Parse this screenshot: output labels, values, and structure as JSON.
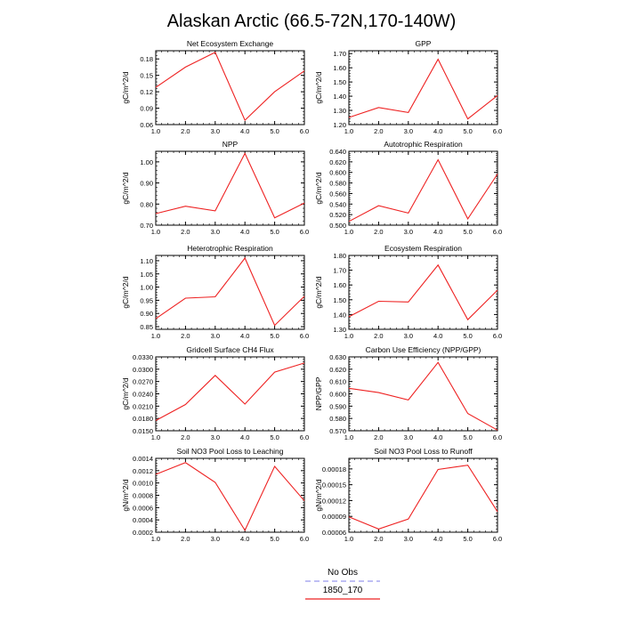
{
  "figure_title": "Alaskan Arctic (66.5-72N,170-140W)",
  "legend": {
    "entries": [
      {
        "label": "No Obs",
        "color": "#9999ee",
        "style": "dashed"
      },
      {
        "label": "1850_170",
        "color": "#ee2222",
        "style": "solid"
      }
    ]
  },
  "colors": {
    "series": "#ee2222"
  },
  "chart_data": [
    {
      "type": "line",
      "title": "Net Ecosystem Exchange",
      "xlabel": "",
      "ylabel": "gC/m^2/d",
      "x": [
        1,
        2,
        3,
        4,
        5,
        6
      ],
      "xlim": [
        1,
        6
      ],
      "xticks": [
        "1.0",
        "2.0",
        "3.0",
        "4.0",
        "5.0",
        "6.0"
      ],
      "ylim": [
        0.06,
        0.195
      ],
      "yticks": [
        "0.06",
        "0.09",
        "0.12",
        "0.15",
        "0.18"
      ],
      "ytick_values": [
        0.06,
        0.09,
        0.12,
        0.15,
        0.18
      ],
      "series": [
        {
          "values": [
            0.128,
            0.165,
            0.192,
            0.068,
            0.12,
            0.158
          ]
        }
      ]
    },
    {
      "type": "line",
      "title": "GPP",
      "xlabel": "",
      "ylabel": "gC/m^2/d",
      "x": [
        1,
        2,
        3,
        4,
        5,
        6
      ],
      "xlim": [
        1,
        6
      ],
      "xticks": [
        "1.0",
        "2.0",
        "3.0",
        "4.0",
        "5.0",
        "6.0"
      ],
      "ylim": [
        1.2,
        1.72
      ],
      "yticks": [
        "1.20",
        "1.30",
        "1.40",
        "1.50",
        "1.60",
        "1.70"
      ],
      "ytick_values": [
        1.2,
        1.3,
        1.4,
        1.5,
        1.6,
        1.7
      ],
      "series": [
        {
          "values": [
            1.25,
            1.32,
            1.285,
            1.66,
            1.24,
            1.405
          ]
        }
      ]
    },
    {
      "type": "line",
      "title": "NPP",
      "xlabel": "",
      "ylabel": "gC/m^2/d",
      "x": [
        1,
        2,
        3,
        4,
        5,
        6
      ],
      "xlim": [
        1,
        6
      ],
      "xticks": [
        "1.0",
        "2.0",
        "3.0",
        "4.0",
        "5.0",
        "6.0"
      ],
      "ylim": [
        0.7,
        1.05
      ],
      "yticks": [
        "0.70",
        "0.80",
        "0.90",
        "1.00"
      ],
      "ytick_values": [
        0.7,
        0.8,
        0.9,
        1.0
      ],
      "series": [
        {
          "values": [
            0.755,
            0.79,
            0.768,
            1.04,
            0.735,
            0.805
          ]
        }
      ]
    },
    {
      "type": "line",
      "title": "Autotrophic Respiration",
      "xlabel": "",
      "ylabel": "gC/m^2/d",
      "x": [
        1,
        2,
        3,
        4,
        5,
        6
      ],
      "xlim": [
        1,
        6
      ],
      "xticks": [
        "1.0",
        "2.0",
        "3.0",
        "4.0",
        "5.0",
        "6.0"
      ],
      "ylim": [
        0.5,
        0.64
      ],
      "yticks": [
        "0.500",
        "0.520",
        "0.540",
        "0.560",
        "0.580",
        "0.600",
        "0.620",
        "0.640"
      ],
      "ytick_values": [
        0.5,
        0.52,
        0.54,
        0.56,
        0.58,
        0.6,
        0.62,
        0.64
      ],
      "series": [
        {
          "values": [
            0.507,
            0.537,
            0.523,
            0.624,
            0.512,
            0.597
          ]
        }
      ]
    },
    {
      "type": "line",
      "title": "Heterotrophic Respiration",
      "xlabel": "",
      "ylabel": "gC/m^2/d",
      "x": [
        1,
        2,
        3,
        4,
        5,
        6
      ],
      "xlim": [
        1,
        6
      ],
      "xticks": [
        "1.0",
        "2.0",
        "3.0",
        "4.0",
        "5.0",
        "6.0"
      ],
      "ylim": [
        0.84,
        1.12
      ],
      "yticks": [
        "0.85",
        "0.90",
        "0.95",
        "1.00",
        "1.05",
        "1.10"
      ],
      "ytick_values": [
        0.85,
        0.9,
        0.95,
        1.0,
        1.05,
        1.1
      ],
      "series": [
        {
          "values": [
            0.88,
            0.958,
            0.963,
            1.11,
            0.855,
            0.965
          ]
        }
      ]
    },
    {
      "type": "line",
      "title": "Ecosystem Respiration",
      "xlabel": "",
      "ylabel": "gC/m^2/d",
      "x": [
        1,
        2,
        3,
        4,
        5,
        6
      ],
      "xlim": [
        1,
        6
      ],
      "xticks": [
        "1.0",
        "2.0",
        "3.0",
        "4.0",
        "5.0",
        "6.0"
      ],
      "ylim": [
        1.3,
        1.8
      ],
      "yticks": [
        "1.30",
        "1.40",
        "1.50",
        "1.60",
        "1.70",
        "1.80"
      ],
      "ytick_values": [
        1.3,
        1.4,
        1.5,
        1.6,
        1.7,
        1.8
      ],
      "series": [
        {
          "values": [
            1.385,
            1.49,
            1.485,
            1.735,
            1.365,
            1.565
          ]
        }
      ]
    },
    {
      "type": "line",
      "title": "Gridcell Surface CH4 Flux",
      "xlabel": "",
      "ylabel": "gC/m^2/d",
      "x": [
        1,
        2,
        3,
        4,
        5,
        6
      ],
      "xlim": [
        1,
        6
      ],
      "xticks": [
        "1.0",
        "2.0",
        "3.0",
        "4.0",
        "5.0",
        "6.0"
      ],
      "ylim": [
        0.015,
        0.033
      ],
      "yticks": [
        "0.0150",
        "0.0180",
        "0.0210",
        "0.0240",
        "0.0270",
        "0.0300",
        "0.0330"
      ],
      "ytick_values": [
        0.015,
        0.018,
        0.021,
        0.024,
        0.027,
        0.03,
        0.033
      ],
      "series": [
        {
          "values": [
            0.0175,
            0.0214,
            0.0285,
            0.0215,
            0.0293,
            0.0315
          ]
        }
      ]
    },
    {
      "type": "line",
      "title": "Carbon Use Efficiency (NPP/GPP)",
      "xlabel": "",
      "ylabel": "NPP/GPP",
      "x": [
        1,
        2,
        3,
        4,
        5,
        6
      ],
      "xlim": [
        1,
        6
      ],
      "xticks": [
        "1.0",
        "2.0",
        "3.0",
        "4.0",
        "5.0",
        "6.0"
      ],
      "ylim": [
        0.57,
        0.63
      ],
      "yticks": [
        "0.570",
        "0.580",
        "0.590",
        "0.600",
        "0.610",
        "0.620",
        "0.630"
      ],
      "ytick_values": [
        0.57,
        0.58,
        0.59,
        0.6,
        0.61,
        0.62,
        0.63
      ],
      "series": [
        {
          "values": [
            0.6045,
            0.601,
            0.595,
            0.6255,
            0.584,
            0.5705
          ]
        }
      ]
    },
    {
      "type": "line",
      "title": "Soil NO3 Pool Loss to Leaching",
      "xlabel": "",
      "ylabel": "gN/m^2/d",
      "x": [
        1,
        2,
        3,
        4,
        5,
        6
      ],
      "xlim": [
        1,
        6
      ],
      "xticks": [
        "1.0",
        "2.0",
        "3.0",
        "4.0",
        "5.0",
        "6.0"
      ],
      "ylim": [
        0.0002,
        0.0014
      ],
      "yticks": [
        "0.0002",
        "0.0004",
        "0.0006",
        "0.0008",
        "0.0010",
        "0.0012",
        "0.0014"
      ],
      "ytick_values": [
        0.0002,
        0.0004,
        0.0006,
        0.0008,
        0.001,
        0.0012,
        0.0014
      ],
      "series": [
        {
          "values": [
            0.00114,
            0.00133,
            0.00101,
            0.00023,
            0.00127,
            0.00071
          ]
        }
      ]
    },
    {
      "type": "line",
      "title": "Soil NO3 Pool Loss to Runoff",
      "xlabel": "",
      "ylabel": "gN/m^2/d",
      "x": [
        1,
        2,
        3,
        4,
        5,
        6
      ],
      "xlim": [
        1,
        6
      ],
      "xticks": [
        "1.0",
        "2.0",
        "3.0",
        "4.0",
        "5.0",
        "6.0"
      ],
      "ylim": [
        6e-05,
        0.0002
      ],
      "yticks": [
        "0.00006",
        "0.00009",
        "0.00012",
        "0.00015",
        "0.00018"
      ],
      "ytick_values": [
        6e-05,
        9e-05,
        0.00012,
        0.00015,
        0.00018
      ],
      "series": [
        {
          "values": [
            8.9e-05,
            6.6e-05,
            8.5e-05,
            0.000179,
            0.000187,
            9.9e-05
          ]
        }
      ]
    }
  ]
}
